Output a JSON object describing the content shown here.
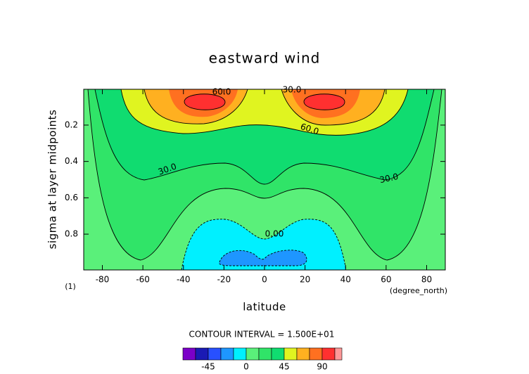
{
  "chart_data": {
    "type": "contour",
    "title": "eastward wind",
    "x_label": "latitude",
    "y_label": "sigma at layer midpoints",
    "x_units": "(degree_north)",
    "y_units": "(1)",
    "contour_interval_text": "CONTOUR INTERVAL = 1.500E+01",
    "xlim": [
      -89.2,
      89.2
    ],
    "xticks": [
      -80,
      -60,
      -40,
      -20,
      0,
      20,
      40,
      60,
      80
    ],
    "ylim": [
      0.997,
      0.003
    ],
    "yticks": [
      0.2,
      0.4,
      0.6,
      0.8
    ],
    "contour_labels": [
      {
        "value": 60,
        "label": "60.0"
      },
      {
        "value": 30,
        "label": "30.0"
      },
      {
        "value": 60,
        "label": "60.0"
      },
      {
        "value": 30,
        "label": "30.0"
      },
      {
        "value": 30,
        "label": "30.0"
      },
      {
        "value": 0,
        "label": "0.00"
      }
    ],
    "colorbar": {
      "levels": [
        -75,
        -60,
        -45,
        -30,
        -15,
        0,
        15,
        30,
        45,
        60,
        75,
        90,
        105
      ],
      "colors": [
        "#7b00c8",
        "#1a1ab4",
        "#2850ff",
        "#1e96ff",
        "#00f0ff",
        "#5af07a",
        "#30e468",
        "#10dc70",
        "#e0f420",
        "#ffb020",
        "#ff7020",
        "#ff3030"
      ],
      "over_color": "#ff9898",
      "ticks": [
        -45,
        0,
        45,
        90
      ]
    }
  }
}
